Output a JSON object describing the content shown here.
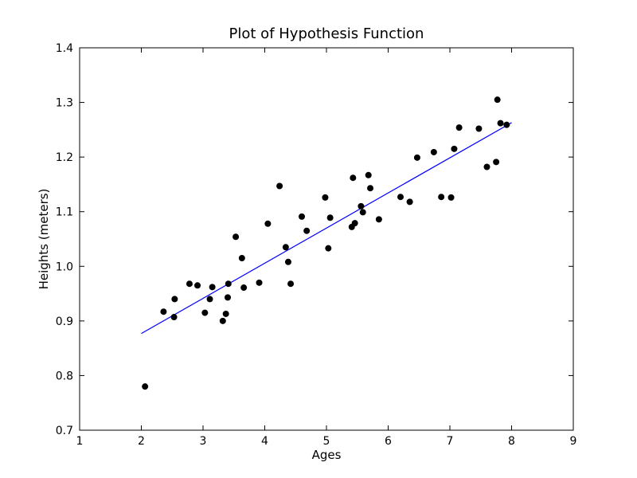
{
  "chart_data": {
    "type": "scatter",
    "title": "Plot of Hypothesis Function",
    "xlabel": "Ages",
    "ylabel": "Heights (meters)",
    "xlim": [
      1,
      9
    ],
    "ylim": [
      0.7,
      1.4
    ],
    "xticks": [
      "1",
      "2",
      "3",
      "4",
      "5",
      "6",
      "7",
      "8",
      "9"
    ],
    "yticks": [
      "0.7",
      "0.8",
      "0.9",
      "1.0",
      "1.1",
      "1.2",
      "1.3",
      "1.4"
    ],
    "grid": false,
    "points_color": "#000000",
    "line_color": "#0000ff",
    "series": [
      {
        "kind": "scatter",
        "points": [
          [
            2.06,
            0.78
          ],
          [
            2.36,
            0.917
          ],
          [
            2.53,
            0.907
          ],
          [
            2.54,
            0.94
          ],
          [
            2.78,
            0.968
          ],
          [
            2.91,
            0.965
          ],
          [
            3.03,
            0.915
          ],
          [
            3.11,
            0.94
          ],
          [
            3.15,
            0.962
          ],
          [
            3.32,
            0.9
          ],
          [
            3.37,
            0.913
          ],
          [
            3.4,
            0.943
          ],
          [
            3.41,
            0.968
          ],
          [
            3.53,
            1.054
          ],
          [
            3.63,
            1.015
          ],
          [
            3.66,
            0.961
          ],
          [
            3.91,
            0.97
          ],
          [
            4.05,
            1.078
          ],
          [
            4.24,
            1.147
          ],
          [
            4.34,
            1.035
          ],
          [
            4.38,
            1.008
          ],
          [
            4.42,
            0.968
          ],
          [
            4.6,
            1.091
          ],
          [
            4.68,
            1.065
          ],
          [
            4.98,
            1.126
          ],
          [
            5.03,
            1.033
          ],
          [
            5.06,
            1.089
          ],
          [
            5.41,
            1.072
          ],
          [
            5.43,
            1.162
          ],
          [
            5.46,
            1.079
          ],
          [
            5.56,
            1.11
          ],
          [
            5.59,
            1.099
          ],
          [
            5.68,
            1.167
          ],
          [
            5.71,
            1.143
          ],
          [
            5.85,
            1.086
          ],
          [
            6.2,
            1.127
          ],
          [
            6.35,
            1.118
          ],
          [
            6.47,
            1.199
          ],
          [
            6.74,
            1.209
          ],
          [
            6.86,
            1.127
          ],
          [
            7.02,
            1.126
          ],
          [
            7.07,
            1.215
          ],
          [
            7.15,
            1.254
          ],
          [
            7.47,
            1.252
          ],
          [
            7.6,
            1.182
          ],
          [
            7.75,
            1.191
          ],
          [
            7.77,
            1.305
          ],
          [
            7.82,
            1.262
          ],
          [
            7.92,
            1.259
          ]
        ]
      },
      {
        "kind": "line",
        "points": [
          [
            2.0,
            0.877
          ],
          [
            8.0,
            1.263
          ]
        ]
      }
    ]
  }
}
